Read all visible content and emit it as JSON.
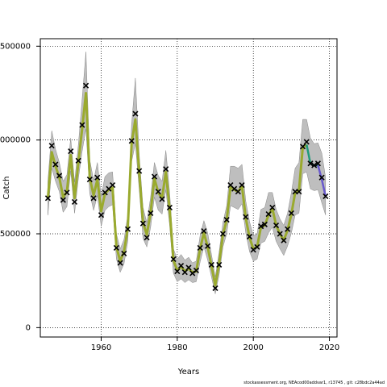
{
  "footer": "stockassessment.org, NEAcod00addvar1, r13745 , git: c28bdc2a44ad",
  "chart_data": {
    "type": "line",
    "xlabel": "Years",
    "ylabel": "Catch",
    "xlim": [
      1944,
      2022
    ],
    "ylim": [
      -50000,
      1540000
    ],
    "xticks": [
      1960,
      1980,
      2000,
      2020
    ],
    "xtick_labels": [
      "1960",
      "1980",
      "2000",
      "2020"
    ],
    "yticks": [
      0,
      500000,
      1000000,
      1500000
    ],
    "ytick_labels": [
      "0",
      "500000",
      "1000000",
      "1500000"
    ],
    "grid": "dotted",
    "colors": {
      "band": "#bebebe",
      "band_edge": "#888888",
      "line": "#9aaa2e",
      "line_recent": "#1f9a7a",
      "line_last": "#6a5acd",
      "marker": "#000000"
    },
    "years": [
      1946,
      1947,
      1948,
      1949,
      1950,
      1951,
      1952,
      1953,
      1954,
      1955,
      1956,
      1957,
      1958,
      1959,
      1960,
      1961,
      1962,
      1963,
      1964,
      1965,
      1966,
      1967,
      1968,
      1969,
      1970,
      1971,
      1972,
      1973,
      1974,
      1975,
      1976,
      1977,
      1978,
      1979,
      1980,
      1981,
      1982,
      1983,
      1984,
      1985,
      1986,
      1987,
      1988,
      1989,
      1990,
      1991,
      1992,
      1993,
      1994,
      1995,
      1996,
      1997,
      1998,
      1999,
      2000,
      2001,
      2002,
      2003,
      2004,
      2005,
      2006,
      2007,
      2008,
      2009,
      2010,
      2011,
      2012,
      2013,
      2014,
      2015,
      2016,
      2017,
      2018,
      2019
    ],
    "observed": [
      690000,
      970000,
      870000,
      810000,
      680000,
      720000,
      940000,
      670000,
      890000,
      1080000,
      1290000,
      790000,
      690000,
      800000,
      600000,
      720000,
      740000,
      760000,
      425000,
      345000,
      395000,
      525000,
      995000,
      1140000,
      835000,
      555000,
      480000,
      610000,
      805000,
      725000,
      685000,
      845000,
      640000,
      365000,
      300000,
      330000,
      295000,
      320000,
      290000,
      305000,
      425000,
      515000,
      435000,
      335000,
      210000,
      335000,
      500000,
      575000,
      760000,
      740000,
      725000,
      760000,
      590000,
      485000,
      415000,
      430000,
      540000,
      550000,
      605000,
      640000,
      545000,
      500000,
      465000,
      525000,
      610000,
      725000,
      725000,
      965000,
      990000,
      875000,
      865000,
      875000,
      800000,
      700000
    ],
    "estimate": [
      690000,
      935000,
      860000,
      800000,
      695000,
      725000,
      920000,
      690000,
      880000,
      1060000,
      1250000,
      800000,
      705000,
      790000,
      620000,
      715000,
      735000,
      745000,
      430000,
      355000,
      405000,
      530000,
      980000,
      1110000,
      825000,
      560000,
      495000,
      615000,
      795000,
      720000,
      690000,
      830000,
      630000,
      360000,
      305000,
      325000,
      300000,
      315000,
      295000,
      300000,
      420000,
      505000,
      430000,
      330000,
      225000,
      340000,
      495000,
      575000,
      750000,
      735000,
      725000,
      755000,
      585000,
      480000,
      420000,
      430000,
      535000,
      545000,
      600000,
      635000,
      545000,
      500000,
      465000,
      520000,
      605000,
      720000,
      730000,
      960000,
      975000,
      875000,
      865000,
      865000,
      790000,
      700000
    ],
    "lower": [
      600000,
      850000,
      780000,
      725000,
      615000,
      645000,
      835000,
      610000,
      795000,
      940000,
      1060000,
      715000,
      625000,
      705000,
      540000,
      625000,
      645000,
      655000,
      365000,
      295000,
      340000,
      460000,
      885000,
      980000,
      735000,
      475000,
      430000,
      535000,
      695000,
      625000,
      605000,
      735000,
      545000,
      290000,
      245000,
      260000,
      240000,
      255000,
      240000,
      245000,
      350000,
      430000,
      360000,
      270000,
      180000,
      280000,
      430000,
      500000,
      650000,
      640000,
      630000,
      660000,
      505000,
      405000,
      355000,
      365000,
      450000,
      460000,
      505000,
      535000,
      460000,
      420000,
      385000,
      435000,
      505000,
      600000,
      610000,
      820000,
      830000,
      740000,
      730000,
      735000,
      665000,
      600000
    ],
    "upper": [
      780000,
      1050000,
      950000,
      880000,
      780000,
      815000,
      1010000,
      775000,
      975000,
      1220000,
      1470000,
      895000,
      785000,
      880000,
      700000,
      805000,
      825000,
      830000,
      500000,
      420000,
      470000,
      600000,
      1080000,
      1330000,
      920000,
      640000,
      560000,
      695000,
      880000,
      810000,
      780000,
      945000,
      720000,
      420000,
      365000,
      390000,
      360000,
      375000,
      345000,
      355000,
      490000,
      570000,
      505000,
      390000,
      270000,
      400000,
      560000,
      650000,
      860000,
      860000,
      850000,
      870000,
      675000,
      565000,
      490000,
      500000,
      630000,
      640000,
      720000,
      720000,
      630000,
      580000,
      545000,
      610000,
      720000,
      850000,
      880000,
      1110000,
      1110000,
      1010000,
      980000,
      985000,
      930000,
      800000
    ]
  }
}
